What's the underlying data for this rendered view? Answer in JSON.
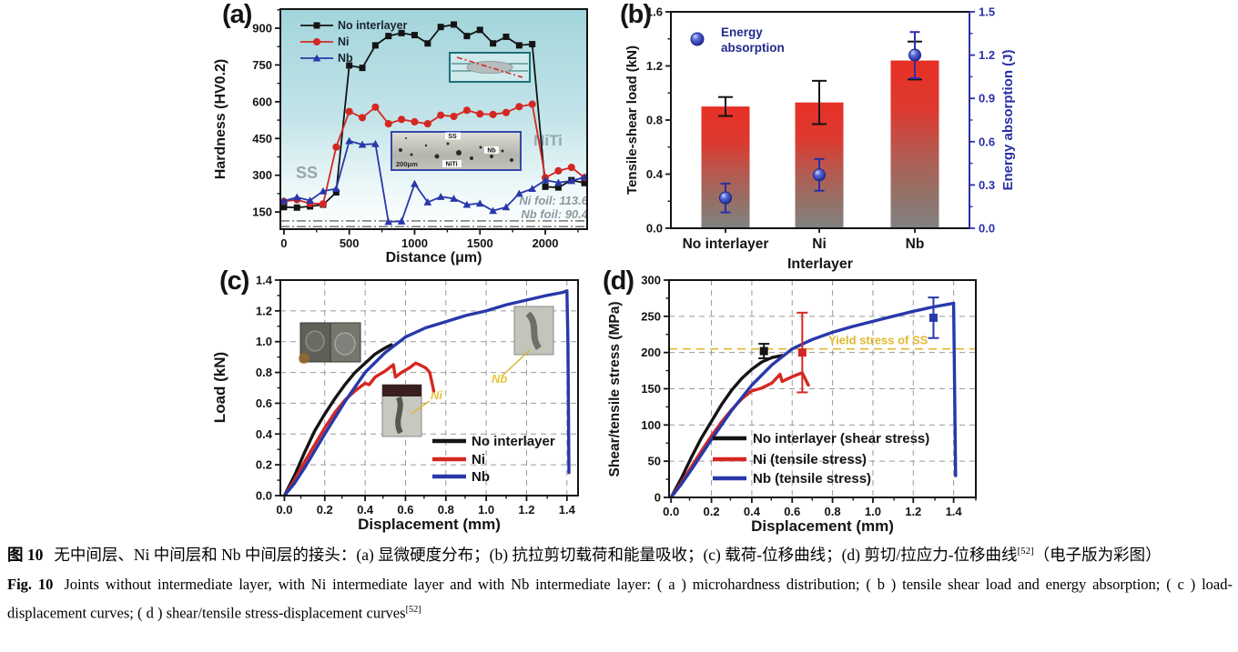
{
  "figure": {
    "caption_zh": {
      "prefix": "图 10",
      "body": "无中间层、Ni 中间层和 Nb 中间层的接头：(a) 显微硬度分布；(b) 抗拉剪切载荷和能量吸收；(c) 载荷-位移曲线；(d) 剪切/拉应力-位移曲线",
      "ref": "[52]",
      "suffix": "（电子版为彩图）"
    },
    "caption_en": {
      "prefix": "Fig. 10",
      "body": "Joints without intermediate layer, with Ni intermediate layer and with Nb intermediate layer: ( a ) microhardness distribution; ( b ) tensile shear load and energy absorption; ( c ) load-displacement curves; ( d ) shear/tensile stress-displacement curves",
      "ref": "[52]"
    }
  },
  "colors": {
    "series_black": "#141414",
    "ni_red": "#d52722",
    "nb_blue": "#2838aa",
    "energy_blue": "#2a2fa6",
    "bar_top": "#e73026",
    "bar_bottom": "#828282",
    "yield_yellow": "#dfb830",
    "panel_a_bg_top": "#a2d5db",
    "grid_gray": "#9a9a9a",
    "region_label_gray": "#93a7b0"
  },
  "chart_data": [
    {
      "panel_label": "(a)",
      "type": "line",
      "xlabel": "Distance (μm)",
      "ylabel": "Hardness (HV0.2)",
      "xlim": [
        -27,
        2320
      ],
      "ylim": [
        80,
        978
      ],
      "xticks": [
        "0",
        "500",
        "1000",
        "1500",
        "2000"
      ],
      "yticks": [
        "150",
        "300",
        "450",
        "600",
        "750",
        "900"
      ],
      "x_minor_step": 250,
      "y_minor_step": 75,
      "series": [
        {
          "name": "No interlayer",
          "color": "#141414",
          "marker": "square",
          "x": [
            0,
            100,
            200,
            300,
            400,
            500,
            600,
            700,
            800,
            900,
            1000,
            1100,
            1200,
            1300,
            1400,
            1500,
            1600,
            1700,
            1800,
            1900,
            2000,
            2100,
            2200,
            2300
          ],
          "y": [
            170,
            168,
            173,
            180,
            230,
            748,
            738,
            830,
            868,
            880,
            872,
            838,
            905,
            915,
            868,
            893,
            838,
            865,
            830,
            835,
            253,
            250,
            280,
            268
          ]
        },
        {
          "name": "Ni",
          "color": "#d52722",
          "marker": "circle",
          "x": [
            0,
            100,
            200,
            300,
            400,
            500,
            600,
            700,
            800,
            900,
            1000,
            1100,
            1200,
            1300,
            1400,
            1500,
            1600,
            1700,
            1800,
            1900,
            2000,
            2100,
            2200,
            2300
          ],
          "y": [
            193,
            200,
            185,
            183,
            415,
            560,
            535,
            578,
            510,
            528,
            518,
            510,
            545,
            540,
            565,
            550,
            548,
            556,
            580,
            590,
            290,
            318,
            332,
            290
          ]
        },
        {
          "name": "Nb",
          "color": "#2838aa",
          "marker": "triangle",
          "x": [
            0,
            100,
            200,
            300,
            400,
            500,
            600,
            700,
            800,
            900,
            1000,
            1100,
            1200,
            1300,
            1400,
            1500,
            1600,
            1700,
            1800,
            1900,
            2000,
            2100,
            2200,
            2300
          ],
          "y": [
            195,
            210,
            197,
            235,
            245,
            440,
            425,
            428,
            110,
            112,
            265,
            190,
            212,
            205,
            180,
            185,
            155,
            170,
            225,
            245,
            280,
            270,
            277,
            292
          ]
        }
      ],
      "region_labels": [
        "SS",
        "NiTi"
      ],
      "foil_notes": [
        "Ni foil: 113.6",
        "Nb foil: 90.4"
      ],
      "ref_values": [
        113.6,
        90.4
      ],
      "micrograph_labels": [
        "SS",
        "Nb",
        "NiTi",
        "200μm"
      ]
    },
    {
      "panel_label": "(b)",
      "type": "bar-dual-axis",
      "categories": [
        "No interlayer",
        "Ni",
        "Nb"
      ],
      "xlabel": "Interlayer",
      "ylabel_left": "Tensile-shear load (kN)",
      "ylabel_right": "Energy absorption (J)",
      "ylim_left": [
        0,
        1.6
      ],
      "ylim_right": [
        0,
        1.5
      ],
      "yticks_left": [
        "0.0",
        "0.4",
        "0.8",
        "1.2",
        "1.6"
      ],
      "yticks_right": [
        "0.0",
        "0.3",
        "0.6",
        "0.9",
        "1.2",
        "1.5"
      ],
      "y_minor_left": 0.2,
      "y_minor_right": 0.15,
      "bars": {
        "label": "Tensile-shear load",
        "values": [
          0.9,
          0.93,
          1.24
        ],
        "errors": [
          0.07,
          0.16,
          0.14
        ]
      },
      "points": {
        "label": "Energy absorption",
        "values": [
          0.21,
          0.37,
          1.2
        ],
        "errors": [
          0.1,
          0.11,
          0.16
        ]
      },
      "legend_lines": [
        "Energy",
        "absorption"
      ]
    },
    {
      "panel_label": "(c)",
      "type": "line",
      "xlabel": "Displacement (mm)",
      "ylabel": "Load (kN)",
      "xlim": [
        -0.02,
        1.455
      ],
      "ylim": [
        0,
        1.4
      ],
      "xticks": [
        "0.0",
        "0.2",
        "0.4",
        "0.6",
        "0.8",
        "1.0",
        "1.2",
        "1.4"
      ],
      "yticks": [
        "0.0",
        "0.2",
        "0.4",
        "0.6",
        "0.8",
        "1.0",
        "1.2",
        "1.4"
      ],
      "x_minor_step": 0.1,
      "y_minor_step": 0.1,
      "grid": true,
      "series": [
        {
          "name": "No interlayer",
          "color": "#141414",
          "x": [
            0,
            0.05,
            0.1,
            0.15,
            0.2,
            0.25,
            0.3,
            0.35,
            0.4,
            0.45,
            0.5,
            0.53
          ],
          "y": [
            0,
            0.13,
            0.28,
            0.42,
            0.53,
            0.63,
            0.72,
            0.8,
            0.86,
            0.92,
            0.96,
            0.98
          ]
        },
        {
          "name": "Ni",
          "color": "#d52722",
          "x": [
            0,
            0.05,
            0.1,
            0.15,
            0.2,
            0.25,
            0.3,
            0.35,
            0.38,
            0.4,
            0.42,
            0.45,
            0.5,
            0.54,
            0.55,
            0.58,
            0.62,
            0.65,
            0.67,
            0.7,
            0.72,
            0.74
          ],
          "y": [
            0,
            0.1,
            0.22,
            0.33,
            0.44,
            0.54,
            0.62,
            0.68,
            0.71,
            0.73,
            0.72,
            0.77,
            0.81,
            0.85,
            0.77,
            0.8,
            0.83,
            0.86,
            0.85,
            0.83,
            0.8,
            0.68
          ]
        },
        {
          "name": "Nb",
          "color": "#2838aa",
          "x": [
            0,
            0.05,
            0.1,
            0.15,
            0.2,
            0.3,
            0.4,
            0.5,
            0.6,
            0.7,
            0.8,
            0.9,
            1.0,
            1.1,
            1.2,
            1.3,
            1.38,
            1.4,
            1.405,
            1.41
          ],
          "y": [
            0,
            0.08,
            0.18,
            0.29,
            0.4,
            0.61,
            0.8,
            0.93,
            1.03,
            1.09,
            1.13,
            1.17,
            1.2,
            1.24,
            1.27,
            1.3,
            1.32,
            1.33,
            1.0,
            0.15
          ]
        }
      ],
      "legend_labels": [
        "No interlayer",
        "Ni",
        "Nb"
      ],
      "fracture_labels": [
        "Ni",
        "Nb"
      ]
    },
    {
      "panel_label": "(d)",
      "type": "line",
      "xlabel": "Displacement (mm)",
      "ylabel": "Shear/tensile stress (MPa)",
      "xlim": [
        -0.01,
        1.51
      ],
      "ylim": [
        0,
        300
      ],
      "xticks": [
        "0.0",
        "0.2",
        "0.4",
        "0.6",
        "0.8",
        "1.0",
        "1.2",
        "1.4"
      ],
      "yticks": [
        "0",
        "50",
        "100",
        "150",
        "200",
        "250",
        "300"
      ],
      "x_minor_step": 0.1,
      "y_minor_step": 25,
      "grid": true,
      "series": [
        {
          "name": "No interlayer (shear stress)",
          "color": "#141414",
          "x": [
            0,
            0.05,
            0.1,
            0.15,
            0.2,
            0.25,
            0.3,
            0.35,
            0.4,
            0.45,
            0.5,
            0.55
          ],
          "y": [
            0,
            26,
            55,
            82,
            105,
            128,
            148,
            164,
            177,
            187,
            193,
            196
          ]
        },
        {
          "name": "Ni (tensile stress)",
          "color": "#d52722",
          "x": [
            0,
            0.05,
            0.1,
            0.15,
            0.2,
            0.25,
            0.3,
            0.35,
            0.4,
            0.45,
            0.5,
            0.54,
            0.55,
            0.58,
            0.62,
            0.65,
            0.68
          ],
          "y": [
            0,
            20,
            42,
            64,
            85,
            104,
            121,
            136,
            147,
            151,
            158,
            170,
            160,
            164,
            169,
            172,
            155
          ]
        },
        {
          "name": "Nb (tensile stress)",
          "color": "#2838aa",
          "x": [
            0,
            0.05,
            0.1,
            0.2,
            0.3,
            0.4,
            0.5,
            0.6,
            0.7,
            0.8,
            0.9,
            1.0,
            1.1,
            1.2,
            1.3,
            1.38,
            1.4,
            1.405,
            1.41
          ],
          "y": [
            0,
            18,
            38,
            80,
            120,
            155,
            183,
            205,
            218,
            228,
            236,
            243,
            250,
            257,
            263,
            267,
            268,
            150,
            30
          ]
        }
      ],
      "points": [
        {
          "series": "No interlayer (shear stress)",
          "x": 0.46,
          "y": 202,
          "err": 10,
          "color": "#141414"
        },
        {
          "series": "Ni (tensile stress)",
          "x": 0.65,
          "y": 200,
          "err": 55,
          "color": "#d52722"
        },
        {
          "series": "Nb (tensile stress)",
          "x": 1.3,
          "y": 248,
          "err": 28,
          "color": "#2838aa"
        }
      ],
      "ref_line": {
        "value": 205,
        "label": "Yield stress of SS"
      },
      "legend_labels": [
        "No interlayer (shear stress)",
        "Ni (tensile stress)",
        "Nb (tensile stress)"
      ]
    }
  ]
}
